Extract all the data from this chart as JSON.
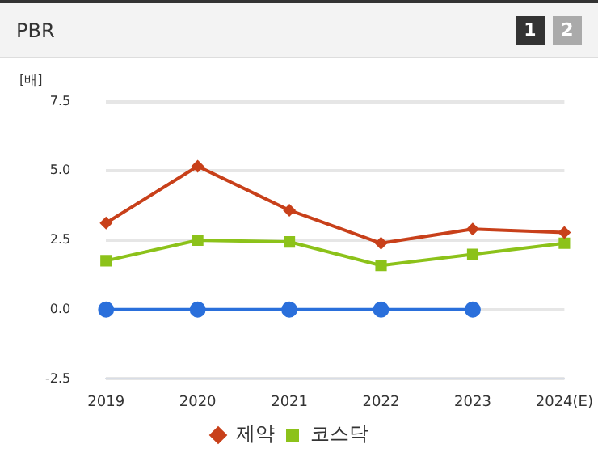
{
  "chart_data": {
    "type": "line",
    "title": "PBR",
    "ylabel": "[배]",
    "annotations": [
      "1",
      "2"
    ],
    "categories": [
      "2019",
      "2020",
      "2021",
      "2022",
      "2023",
      "2024(E)"
    ],
    "series": [
      {
        "color": "#2a6fdb",
        "marker": "circle",
        "values": [
          0,
          0,
          0,
          0,
          0,
          null
        ]
      },
      {
        "name": "제약",
        "color": "#c8401a",
        "marker": "diamond",
        "values": [
          3.12,
          5.17,
          3.58,
          2.39,
          2.9,
          2.78
        ]
      },
      {
        "name": "코스닥",
        "color": "#8cc21a",
        "marker": "square",
        "values": [
          1.76,
          2.5,
          2.44,
          1.59,
          1.99,
          2.39
        ]
      }
    ],
    "ylim": [
      -2.5,
      7.5
    ],
    "yticks": [
      -2.5,
      {
        "value": 0,
        "label": "0.0"
      },
      2.5,
      {
        "value": 5,
        "label": "5.0"
      },
      7.5
    ],
    "grid": "y",
    "legend": "bottom"
  }
}
